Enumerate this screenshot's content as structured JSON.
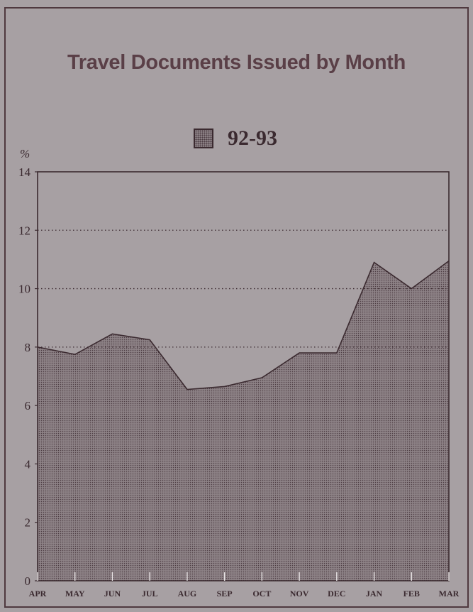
{
  "title": "Travel Documents Issued by Month",
  "legend": {
    "label": "92-93"
  },
  "colors": {
    "background": "#a7a0a3",
    "area_fill": "#8a7f83",
    "ink": "#3b2a30",
    "title": "#5a3f47"
  },
  "chart_data": {
    "type": "area",
    "title": "Travel Documents Issued by Month",
    "ylabel": "%",
    "xlabel": "",
    "categories": [
      "APR",
      "MAY",
      "JUN",
      "JUL",
      "AUG",
      "SEP",
      "OCT",
      "NOV",
      "DEC",
      "JAN",
      "FEB",
      "MAR"
    ],
    "series": [
      {
        "name": "92-93",
        "values": [
          8.0,
          7.75,
          8.45,
          8.25,
          6.55,
          6.65,
          6.95,
          7.8,
          7.8,
          10.9,
          10.0,
          10.95
        ]
      }
    ],
    "ylim": [
      0,
      14
    ],
    "yticks": [
      0,
      2,
      4,
      6,
      8,
      10,
      12,
      14
    ],
    "grid_dotted_at": [
      8,
      10,
      12
    ],
    "legend_position": "top-center"
  }
}
